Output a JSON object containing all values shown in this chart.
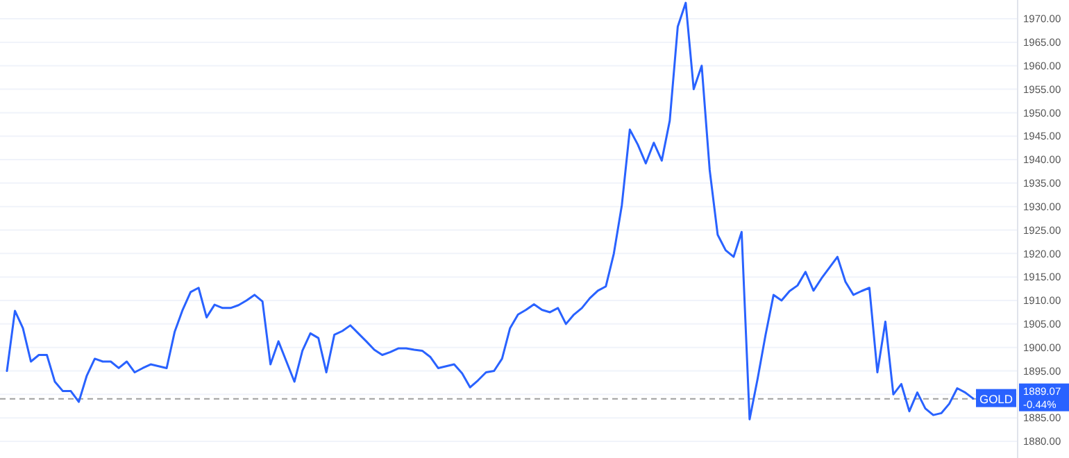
{
  "chart_data": {
    "type": "line",
    "categories": [
      null,
      null,
      null,
      null,
      null,
      null,
      null,
      null,
      null,
      null,
      null,
      null,
      null,
      null,
      null,
      null,
      null,
      null,
      null,
      null,
      null,
      null,
      null,
      null,
      null,
      null,
      null,
      null,
      null,
      null,
      null,
      null,
      null,
      null,
      null,
      null,
      null,
      null,
      null,
      null,
      null,
      null,
      null,
      null,
      null,
      null,
      null,
      null,
      null,
      null,
      null,
      null,
      null,
      null,
      null,
      null,
      null,
      null,
      null,
      null,
      null,
      null,
      null,
      null,
      null,
      null,
      null,
      null,
      null,
      null,
      null,
      null,
      null,
      null,
      null,
      null,
      null,
      null,
      null,
      null,
      null,
      null,
      null,
      null,
      null,
      null,
      null,
      null,
      null,
      null,
      null,
      null,
      null,
      null,
      null,
      null,
      null,
      null,
      null,
      null,
      null,
      null,
      null,
      null,
      null,
      null,
      null,
      null,
      null,
      null,
      null,
      null,
      null,
      null,
      null,
      null,
      null,
      null,
      null,
      null,
      null,
      null
    ],
    "series": [
      {
        "color": "#2962ff",
        "values": [
          1895.0,
          1907.8,
          1904.1,
          1897.0,
          1898.4,
          1898.4,
          1892.7,
          1890.7,
          1890.7,
          1888.4,
          1894,
          1897.6,
          1897.0,
          1897.0,
          1895.6,
          1897.0,
          1894.7,
          1895.6,
          1896.4,
          1896.0,
          1895.6,
          1903.3,
          1908,
          1911.8,
          1912.7,
          1906.4,
          1909.1,
          1908.4,
          1908.4,
          1909.0,
          1910,
          1911.2,
          1909.8,
          1896.4,
          1901.3,
          1897,
          1892.7,
          1899.3,
          1903,
          1902,
          1894.7,
          1902.7,
          1903.5,
          1904.7,
          1903,
          1901.3,
          1899.5,
          1898.4,
          1899,
          1899.8,
          1899.8,
          1899.5,
          1899.3,
          1898,
          1895.6,
          1896,
          1896.4,
          1894.5,
          1891.5,
          1893,
          1894.7,
          1895.0,
          1897.6,
          1904.1,
          1907.0,
          1908,
          1909.2,
          1908,
          1907.5,
          1908.4,
          1905.0,
          1907,
          1908.4,
          1910.5,
          1912.1,
          1913,
          1920,
          1930.3,
          1946.4,
          1943.2,
          1939.2,
          1943.6,
          1939.8,
          1948.3,
          1968.3,
          1973.4,
          1955,
          1960,
          1937.8,
          1924,
          1920.7,
          1919.3,
          1924.6,
          1884.7,
          1893.3,
          1902.7,
          1911.2,
          1910,
          1912,
          1913.2,
          1916.1,
          1912.1,
          1914.7,
          1917,
          1919.3,
          1914,
          1911.2,
          1912,
          1912.7,
          1894.7,
          1905.5,
          1890,
          1892.2,
          1886.4,
          1890.4,
          1887.0,
          1885.6,
          1886,
          1888,
          1891.3,
          1890.4,
          1889.1
        ]
      }
    ],
    "ylim": [
      1880,
      1974
    ],
    "yticks": [
      {
        "value": 1880,
        "label": "1880.00"
      },
      {
        "value": 1885,
        "label": "1885.00"
      },
      {
        "value": 1890,
        "label": null
      },
      {
        "value": 1895,
        "label": "1895.00"
      },
      {
        "value": 1900,
        "label": "1900.00"
      },
      {
        "value": 1905,
        "label": "1905.00"
      },
      {
        "value": 1910,
        "label": "1910.00"
      },
      {
        "value": 1915,
        "label": "1915.00"
      },
      {
        "value": 1920,
        "label": "1920.00"
      },
      {
        "value": 1925,
        "label": "1925.00"
      },
      {
        "value": 1930,
        "label": "1930.00"
      },
      {
        "value": 1935,
        "label": "1935.00"
      },
      {
        "value": 1940,
        "label": "1940.00"
      },
      {
        "value": 1945,
        "label": "1945.00"
      },
      {
        "value": 1950,
        "label": "1950.00"
      },
      {
        "value": 1955,
        "label": "1955.00"
      },
      {
        "value": 1960,
        "label": "1960.00"
      },
      {
        "value": 1965,
        "label": "1965.00"
      },
      {
        "value": 1970,
        "label": "1970.00"
      }
    ],
    "grid": "y",
    "line_style": "solid",
    "ref_lines": [
      {
        "axis": "y",
        "value": 1889.07,
        "label": "1889.07",
        "color": "#9e9e9e",
        "line_style": "dashed"
      }
    ],
    "annotations": [
      "GOLD",
      "-0.44%"
    ]
  }
}
